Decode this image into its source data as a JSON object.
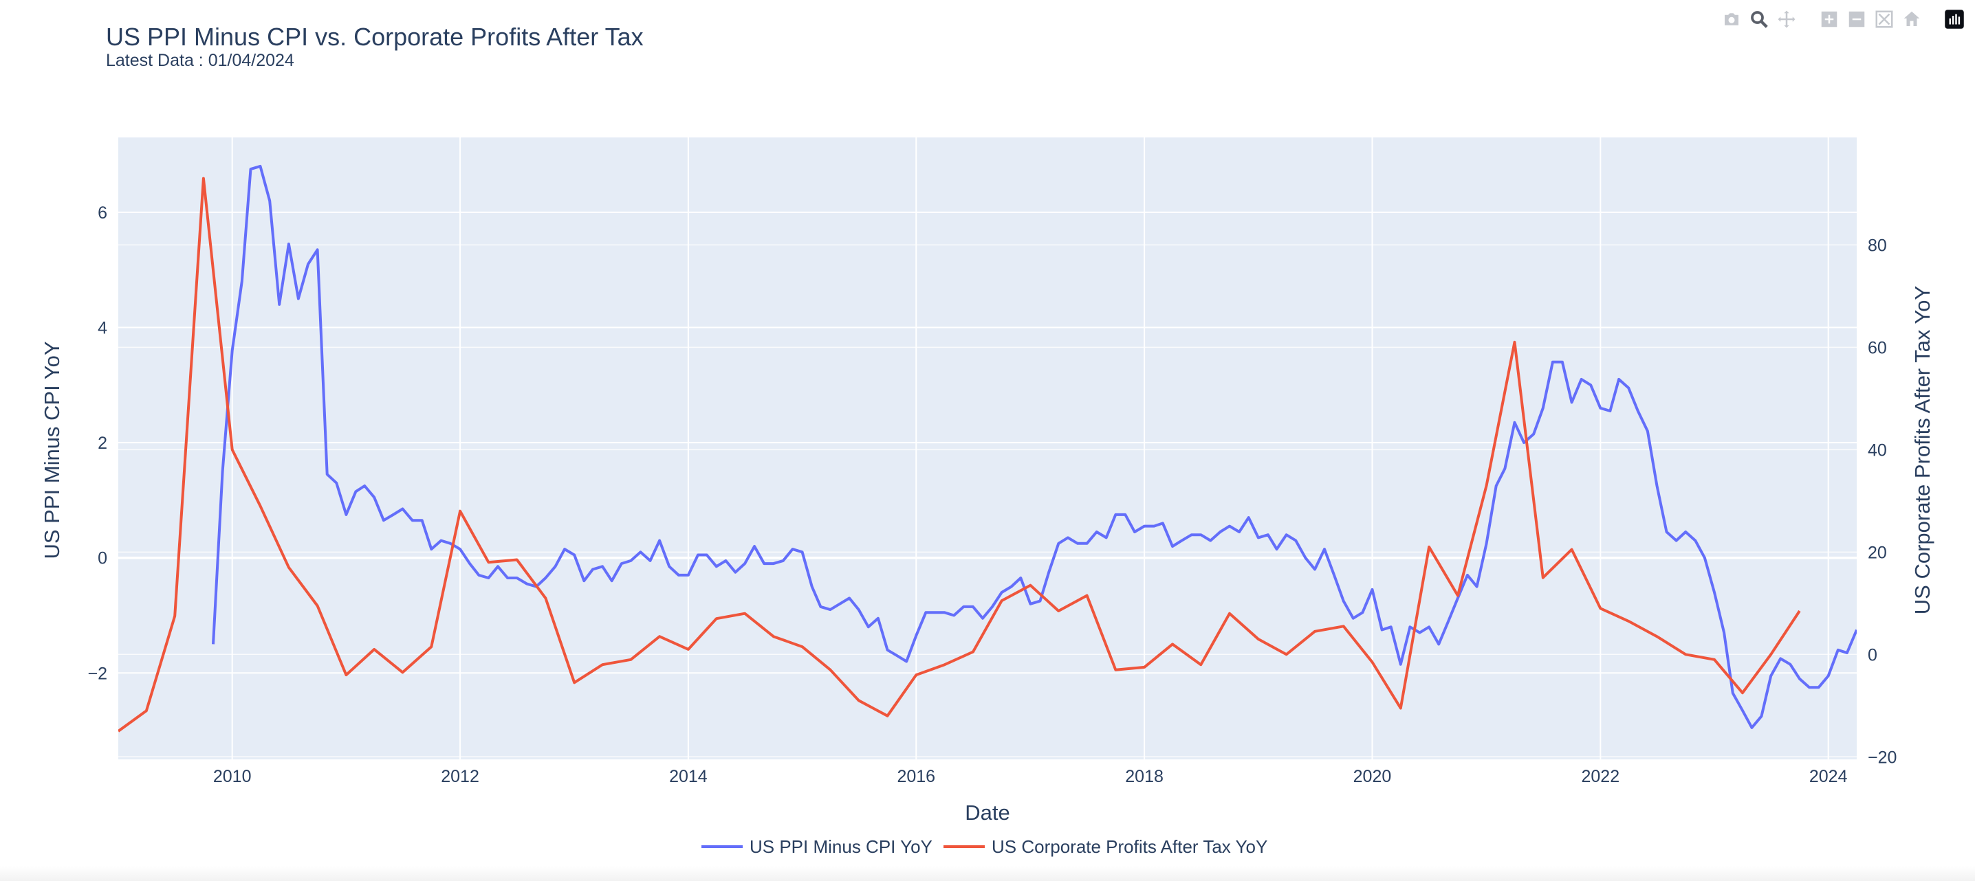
{
  "chart_data": {
    "type": "line",
    "title": "US PPI Minus CPI vs. Corporate Profits After Tax",
    "subtitle": "Latest Data : 01/04/2024",
    "xlabel": "Date",
    "ylabel": "US PPI Minus CPI YoY",
    "y2label": "US Corporate Profits After Tax YoY",
    "xrange": [
      "2009-01-01",
      "2024-04-01"
    ],
    "ylim": [
      -3.5,
      7.3
    ],
    "y2lim": [
      -20.5,
      101
    ],
    "x_ticks": [
      "2010",
      "2012",
      "2014",
      "2016",
      "2018",
      "2020",
      "2022",
      "2024"
    ],
    "y_ticks": [
      -2,
      0,
      2,
      4,
      6
    ],
    "y2_ticks": [
      -20,
      0,
      20,
      40,
      60,
      80
    ],
    "grid": true,
    "legend_position": "bottom-center",
    "series": [
      {
        "name": "US PPI Minus CPI YoY",
        "axis": "y",
        "color": "#636efa",
        "x": [
          "2009-11",
          "2009-12",
          "2010-01",
          "2010-02",
          "2010-03",
          "2010-04",
          "2010-05",
          "2010-06",
          "2010-07",
          "2010-08",
          "2010-09",
          "2010-10",
          "2010-11",
          "2010-12",
          "2011-01",
          "2011-02",
          "2011-03",
          "2011-04",
          "2011-05",
          "2011-06",
          "2011-07",
          "2011-08",
          "2011-09",
          "2011-10",
          "2011-11",
          "2011-12",
          "2012-01",
          "2012-02",
          "2012-03",
          "2012-04",
          "2012-05",
          "2012-06",
          "2012-07",
          "2012-08",
          "2012-09",
          "2012-10",
          "2012-11",
          "2012-12",
          "2013-01",
          "2013-02",
          "2013-03",
          "2013-04",
          "2013-05",
          "2013-06",
          "2013-07",
          "2013-08",
          "2013-09",
          "2013-10",
          "2013-11",
          "2013-12",
          "2014-01",
          "2014-02",
          "2014-03",
          "2014-04",
          "2014-05",
          "2014-06",
          "2014-07",
          "2014-08",
          "2014-09",
          "2014-10",
          "2014-11",
          "2014-12",
          "2015-01",
          "2015-02",
          "2015-03",
          "2015-04",
          "2015-05",
          "2015-06",
          "2015-07",
          "2015-08",
          "2015-09",
          "2015-10",
          "2015-11",
          "2015-12",
          "2016-01",
          "2016-02",
          "2016-03",
          "2016-04",
          "2016-05",
          "2016-06",
          "2016-07",
          "2016-08",
          "2016-09",
          "2016-10",
          "2016-11",
          "2016-12",
          "2017-01",
          "2017-02",
          "2017-03",
          "2017-04",
          "2017-05",
          "2017-06",
          "2017-07",
          "2017-08",
          "2017-09",
          "2017-10",
          "2017-11",
          "2017-12",
          "2018-01",
          "2018-02",
          "2018-03",
          "2018-04",
          "2018-05",
          "2018-06",
          "2018-07",
          "2018-08",
          "2018-09",
          "2018-10",
          "2018-11",
          "2018-12",
          "2019-01",
          "2019-02",
          "2019-03",
          "2019-04",
          "2019-05",
          "2019-06",
          "2019-07",
          "2019-08",
          "2019-09",
          "2019-10",
          "2019-11",
          "2019-12",
          "2020-01",
          "2020-02",
          "2020-03",
          "2020-04",
          "2020-05",
          "2020-06",
          "2020-07",
          "2020-08",
          "2020-09",
          "2020-10",
          "2020-11",
          "2020-12",
          "2021-01",
          "2021-02",
          "2021-03",
          "2021-04",
          "2021-05",
          "2021-06",
          "2021-07",
          "2021-08",
          "2021-09",
          "2021-10",
          "2021-11",
          "2021-12",
          "2022-01",
          "2022-02",
          "2022-03",
          "2022-04",
          "2022-05",
          "2022-06",
          "2022-07",
          "2022-08",
          "2022-09",
          "2022-10",
          "2022-11",
          "2022-12",
          "2023-01",
          "2023-02",
          "2023-03",
          "2023-04",
          "2023-05",
          "2023-06",
          "2023-07",
          "2023-08",
          "2023-09",
          "2023-10",
          "2023-11",
          "2023-12",
          "2024-01",
          "2024-02",
          "2024-03",
          "2024-04"
        ],
        "y": [
          -1.5,
          1.5,
          3.6,
          4.8,
          6.75,
          6.8,
          6.2,
          4.4,
          5.45,
          4.5,
          5.1,
          5.35,
          1.45,
          1.3,
          0.75,
          1.15,
          1.25,
          1.05,
          0.65,
          0.75,
          0.85,
          0.65,
          0.65,
          0.15,
          0.3,
          0.25,
          0.15,
          -0.1,
          -0.3,
          -0.35,
          -0.15,
          -0.35,
          -0.35,
          -0.45,
          -0.5,
          -0.35,
          -0.15,
          0.15,
          0.05,
          -0.4,
          -0.2,
          -0.15,
          -0.4,
          -0.1,
          -0.05,
          0.1,
          -0.05,
          0.3,
          -0.15,
          -0.3,
          -0.3,
          0.05,
          0.05,
          -0.15,
          -0.05,
          -0.25,
          -0.1,
          0.2,
          -0.1,
          -0.1,
          -0.05,
          0.15,
          0.1,
          -0.5,
          -0.85,
          -0.9,
          -0.8,
          -0.7,
          -0.9,
          -1.2,
          -1.05,
          -1.6,
          -1.7,
          -1.8,
          -1.35,
          -0.95,
          -0.95,
          -0.95,
          -1.0,
          -0.85,
          -0.85,
          -1.05,
          -0.85,
          -0.6,
          -0.5,
          -0.35,
          -0.8,
          -0.75,
          -0.25,
          0.25,
          0.35,
          0.25,
          0.25,
          0.45,
          0.35,
          0.75,
          0.75,
          0.45,
          0.55,
          0.55,
          0.6,
          0.2,
          0.3,
          0.4,
          0.4,
          0.3,
          0.45,
          0.55,
          0.45,
          0.7,
          0.35,
          0.4,
          0.15,
          0.4,
          0.3,
          0.0,
          -0.2,
          0.15,
          -0.3,
          -0.75,
          -1.05,
          -0.95,
          -0.55,
          -1.25,
          -1.2,
          -1.85,
          -1.2,
          -1.3,
          -1.2,
          -1.5,
          -1.1,
          -0.7,
          -0.3,
          -0.5,
          0.25,
          1.25,
          1.55,
          2.35,
          2.0,
          2.15,
          2.6,
          3.4,
          3.4,
          2.7,
          3.1,
          3.0,
          2.6,
          2.55,
          3.1,
          2.95,
          2.55,
          2.2,
          1.25,
          0.45,
          0.3,
          0.45,
          0.3,
          0.0,
          -0.6,
          -1.3,
          -2.35,
          -2.65,
          -2.95,
          -2.75,
          -2.05,
          -1.75,
          -1.85,
          -2.1,
          -2.25,
          -2.25,
          -2.05,
          -1.6,
          -1.65,
          -1.25
        ]
      },
      {
        "name": "US Corporate Profits After Tax YoY",
        "axis": "y2",
        "color": "#ef553b",
        "x": [
          "2009-01",
          "2009-04",
          "2009-07",
          "2009-10",
          "2010-01",
          "2010-04",
          "2010-07",
          "2010-10",
          "2011-01",
          "2011-04",
          "2011-07",
          "2011-10",
          "2012-01",
          "2012-04",
          "2012-07",
          "2012-10",
          "2013-01",
          "2013-04",
          "2013-07",
          "2013-10",
          "2014-01",
          "2014-04",
          "2014-07",
          "2014-10",
          "2015-01",
          "2015-04",
          "2015-07",
          "2015-10",
          "2016-01",
          "2016-04",
          "2016-07",
          "2016-10",
          "2017-01",
          "2017-04",
          "2017-07",
          "2017-10",
          "2018-01",
          "2018-04",
          "2018-07",
          "2018-10",
          "2019-01",
          "2019-04",
          "2019-07",
          "2019-10",
          "2020-01",
          "2020-04",
          "2020-07",
          "2020-10",
          "2021-01",
          "2021-04",
          "2021-07",
          "2021-10",
          "2022-01",
          "2022-04",
          "2022-07",
          "2022-10",
          "2023-01",
          "2023-04",
          "2023-07",
          "2023-10"
        ],
        "y": [
          -15,
          -11,
          7.5,
          93,
          40,
          29,
          17,
          9.5,
          -4,
          1,
          -3.5,
          1.5,
          28,
          18,
          18.5,
          11,
          -5.5,
          -2,
          -1,
          3.5,
          1,
          7,
          8,
          3.5,
          1.5,
          -3,
          -9,
          -12,
          -4,
          -2,
          0.5,
          10.5,
          13.5,
          8.5,
          11.5,
          -3,
          -2.5,
          2,
          -2,
          8,
          3,
          0,
          4.5,
          5.5,
          -1.5,
          -10.5,
          21,
          11.5,
          33,
          61,
          15,
          20.5,
          9,
          6.5,
          3.5,
          0,
          -1,
          -7.5,
          0,
          8.5
        ]
      }
    ]
  },
  "toolbar": {
    "buttons": [
      "camera-icon",
      "zoom-icon",
      "pan-icon",
      "zoom-in-icon",
      "zoom-out-icon",
      "autoscale-icon",
      "reset-axes-icon",
      "plotly-logo-icon"
    ]
  }
}
